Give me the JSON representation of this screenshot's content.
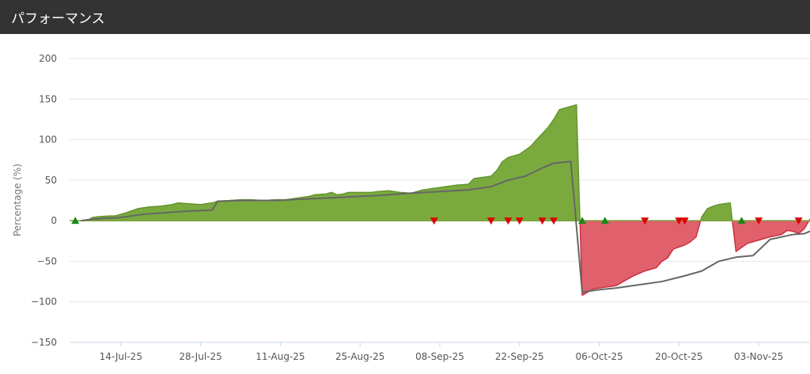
{
  "header": {
    "title": "パフォーマンス"
  },
  "colors": {
    "header_bg": "#333333",
    "positive_fill": "#7aaa3e",
    "positive_stroke": "#5f8f28",
    "negative_fill": "#e0606c",
    "negative_stroke": "#cc2233",
    "benchmark_line": "#666666",
    "grid": "#e6e6e6",
    "buy_marker": "#1a8a1a",
    "sell_marker": "#dd0000"
  },
  "chart_data": {
    "type": "area",
    "ylabel": "Percentage (%)",
    "ylim": [
      -150,
      200
    ],
    "yticks": [
      -150,
      -100,
      -50,
      0,
      50,
      100,
      150,
      200
    ],
    "yticklabels": [
      "−150",
      "−100",
      "−50",
      "0",
      "50",
      "100",
      "150",
      "200"
    ],
    "xlim": [
      "2025-07-05",
      "2025-11-12"
    ],
    "xticks": [
      "2025-07-14",
      "2025-07-28",
      "2025-08-11",
      "2025-08-25",
      "2025-09-08",
      "2025-09-22",
      "2025-10-06",
      "2025-10-20",
      "2025-11-03"
    ],
    "xticklabels": [
      "14-Jul-25",
      "28-Jul-25",
      "11-Aug-25",
      "25-Aug-25",
      "08-Sep-25",
      "22-Sep-25",
      "06-Oct-25",
      "20-Oct-25",
      "03-Nov-25"
    ],
    "grid": true,
    "series": [
      {
        "kind": "area",
        "points": [
          [
            "2025-07-06",
            0
          ],
          [
            "2025-07-08",
            0
          ],
          [
            "2025-07-09",
            4
          ],
          [
            "2025-07-10",
            5
          ],
          [
            "2025-07-12",
            6
          ],
          [
            "2025-07-13",
            6
          ],
          [
            "2025-07-15",
            10
          ],
          [
            "2025-07-17",
            15
          ],
          [
            "2025-07-19",
            17
          ],
          [
            "2025-07-21",
            18
          ],
          [
            "2025-07-23",
            20
          ],
          [
            "2025-07-24",
            22
          ],
          [
            "2025-07-26",
            21
          ],
          [
            "2025-07-28",
            20
          ],
          [
            "2025-07-30",
            22
          ],
          [
            "2025-07-31",
            24
          ],
          [
            "2025-08-02",
            25
          ],
          [
            "2025-08-04",
            26
          ],
          [
            "2025-08-06",
            26
          ],
          [
            "2025-08-08",
            25
          ],
          [
            "2025-08-10",
            26
          ],
          [
            "2025-08-12",
            26
          ],
          [
            "2025-08-14",
            28
          ],
          [
            "2025-08-15",
            29
          ],
          [
            "2025-08-16",
            30
          ],
          [
            "2025-08-17",
            32
          ],
          [
            "2025-08-19",
            33
          ],
          [
            "2025-08-20",
            35
          ],
          [
            "2025-08-21",
            32
          ],
          [
            "2025-08-22",
            33
          ],
          [
            "2025-08-23",
            35
          ],
          [
            "2025-08-25",
            35
          ],
          [
            "2025-08-27",
            35
          ],
          [
            "2025-08-28",
            36
          ],
          [
            "2025-08-30",
            37
          ],
          [
            "2025-09-01",
            35
          ],
          [
            "2025-09-03",
            34
          ],
          [
            "2025-09-05",
            38
          ],
          [
            "2025-09-07",
            40
          ],
          [
            "2025-09-09",
            42
          ],
          [
            "2025-09-11",
            44
          ],
          [
            "2025-09-13",
            45
          ],
          [
            "2025-09-14",
            52
          ],
          [
            "2025-09-16",
            54
          ],
          [
            "2025-09-17",
            55
          ],
          [
            "2025-09-18",
            62
          ],
          [
            "2025-09-19",
            73
          ],
          [
            "2025-09-20",
            78
          ],
          [
            "2025-09-22",
            82
          ],
          [
            "2025-09-24",
            92
          ],
          [
            "2025-09-25",
            100
          ],
          [
            "2025-09-27",
            115
          ],
          [
            "2025-09-28",
            125
          ],
          [
            "2025-09-29",
            137
          ],
          [
            "2025-10-01",
            141
          ],
          [
            "2025-10-02",
            143
          ],
          [
            "2025-10-03",
            -92
          ],
          [
            "2025-10-04",
            -88
          ],
          [
            "2025-10-05",
            -84
          ],
          [
            "2025-10-07",
            -82
          ],
          [
            "2025-10-09",
            -80
          ],
          [
            "2025-10-10",
            -76
          ],
          [
            "2025-10-11",
            -72
          ],
          [
            "2025-10-12",
            -68
          ],
          [
            "2025-10-14",
            -62
          ],
          [
            "2025-10-16",
            -58
          ],
          [
            "2025-10-17",
            -50
          ],
          [
            "2025-10-18",
            -46
          ],
          [
            "2025-10-19",
            -35
          ],
          [
            "2025-10-21",
            -30
          ],
          [
            "2025-10-22",
            -26
          ],
          [
            "2025-10-23",
            -20
          ],
          [
            "2025-10-24",
            5
          ],
          [
            "2025-10-25",
            15
          ],
          [
            "2025-10-26",
            18
          ],
          [
            "2025-10-27",
            20
          ],
          [
            "2025-10-29",
            22
          ],
          [
            "2025-10-30",
            -38
          ],
          [
            "2025-10-31",
            -33
          ],
          [
            "2025-11-01",
            -28
          ],
          [
            "2025-11-03",
            -24
          ],
          [
            "2025-11-05",
            -20
          ],
          [
            "2025-11-07",
            -17
          ],
          [
            "2025-11-08",
            -12
          ],
          [
            "2025-11-09",
            -13
          ],
          [
            "2025-11-10",
            -16
          ],
          [
            "2025-11-11",
            -10
          ],
          [
            "2025-11-12",
            2
          ]
        ]
      },
      {
        "kind": "line",
        "points": [
          [
            "2025-07-07",
            0
          ],
          [
            "2025-07-09",
            2
          ],
          [
            "2025-07-14",
            4
          ],
          [
            "2025-07-18",
            8
          ],
          [
            "2025-07-22",
            10
          ],
          [
            "2025-07-26",
            12
          ],
          [
            "2025-07-30",
            13
          ],
          [
            "2025-07-31",
            24
          ],
          [
            "2025-08-04",
            25
          ],
          [
            "2025-08-10",
            25
          ],
          [
            "2025-08-16",
            27
          ],
          [
            "2025-08-22",
            29
          ],
          [
            "2025-08-28",
            31
          ],
          [
            "2025-09-03",
            34
          ],
          [
            "2025-09-08",
            36
          ],
          [
            "2025-09-13",
            38
          ],
          [
            "2025-09-17",
            42
          ],
          [
            "2025-09-20",
            50
          ],
          [
            "2025-09-23",
            55
          ],
          [
            "2025-09-26",
            65
          ],
          [
            "2025-09-28",
            71
          ],
          [
            "2025-10-01",
            73
          ],
          [
            "2025-10-03",
            -88
          ],
          [
            "2025-10-06",
            -85
          ],
          [
            "2025-10-09",
            -83
          ],
          [
            "2025-10-13",
            -79
          ],
          [
            "2025-10-17",
            -75
          ],
          [
            "2025-10-21",
            -68
          ],
          [
            "2025-10-24",
            -62
          ],
          [
            "2025-10-27",
            -50
          ],
          [
            "2025-10-30",
            -45
          ],
          [
            "2025-11-02",
            -43
          ],
          [
            "2025-11-05",
            -23
          ],
          [
            "2025-11-09",
            -17
          ],
          [
            "2025-11-11",
            -16
          ],
          [
            "2025-11-12",
            -13
          ]
        ]
      }
    ],
    "markers": {
      "buy": [
        "2025-07-06",
        "2025-10-03",
        "2025-10-07",
        "2025-10-31"
      ],
      "sell": [
        "2025-09-07",
        "2025-09-17",
        "2025-09-20",
        "2025-09-22",
        "2025-09-26",
        "2025-09-28",
        "2025-10-14",
        "2025-10-20",
        "2025-10-21",
        "2025-11-03",
        "2025-11-10"
      ]
    }
  }
}
